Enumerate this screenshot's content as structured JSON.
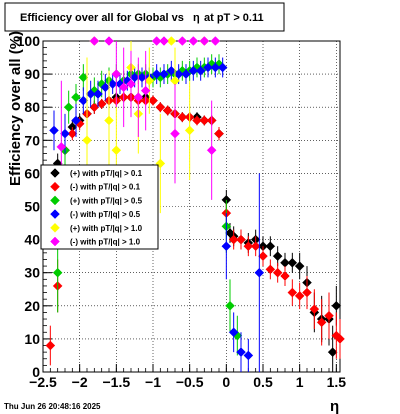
{
  "chart_data": {
    "type": "scatter",
    "title_prefix": "Efficiency over all for Global vs",
    "title_eta": "η",
    "title_suffix": "at pT > 0.11",
    "xlabel": "η",
    "ylabel": "Efficiency over all (%)",
    "xlim": [
      -2.5,
      1.55
    ],
    "ylim": [
      0,
      100
    ],
    "x_ticks": [
      {
        "v": -2.5,
        "label": "−2.5"
      },
      {
        "v": -2,
        "label": "−2"
      },
      {
        "v": -1.5,
        "label": "−1.5"
      },
      {
        "v": -1,
        "label": "−1"
      },
      {
        "v": -0.5,
        "label": "−0.5"
      },
      {
        "v": 0,
        "label": "0"
      },
      {
        "v": 0.5,
        "label": "0.5"
      },
      {
        "v": 1,
        "label": "1"
      },
      {
        "v": 1.5,
        "label": "1.5"
      }
    ],
    "y_ticks": [
      {
        "v": 0,
        "label": "0"
      },
      {
        "v": 10,
        "label": "10"
      },
      {
        "v": 20,
        "label": "20"
      },
      {
        "v": 30,
        "label": "30"
      },
      {
        "v": 40,
        "label": "40"
      },
      {
        "v": 50,
        "label": "50"
      },
      {
        "v": 60,
        "label": "60"
      },
      {
        "v": 70,
        "label": "70"
      },
      {
        "v": 80,
        "label": "80"
      },
      {
        "v": 90,
        "label": "90"
      },
      {
        "v": 100,
        "label": "100"
      }
    ],
    "grid": true,
    "legend_position": "middle-left",
    "timestamp": "Thu Jun 26 20:48:16 2025",
    "series": [
      {
        "name": "(+) with pT/|q| > 0.1",
        "color": "#000000",
        "points": [
          {
            "x": -2.3,
            "y": 63,
            "e": 3
          },
          {
            "x": -2.2,
            "y": 67,
            "e": 3
          },
          {
            "x": -2.1,
            "y": 74,
            "e": 2
          },
          {
            "x": -2.0,
            "y": 76,
            "e": 2
          },
          {
            "x": -1.9,
            "y": 78,
            "e": 2
          },
          {
            "x": -1.8,
            "y": 80,
            "e": 2
          },
          {
            "x": -1.7,
            "y": 81,
            "e": 1.5
          },
          {
            "x": -1.6,
            "y": 82,
            "e": 1.5
          },
          {
            "x": -1.5,
            "y": 83,
            "e": 1.5
          },
          {
            "x": -1.4,
            "y": 83,
            "e": 1.5
          },
          {
            "x": -1.3,
            "y": 83,
            "e": 1.5
          },
          {
            "x": -1.2,
            "y": 83,
            "e": 1.5
          },
          {
            "x": -1.1,
            "y": 83,
            "e": 1.5
          },
          {
            "x": -1.0,
            "y": 82,
            "e": 1.5
          },
          {
            "x": -0.9,
            "y": 80,
            "e": 1.5
          },
          {
            "x": -0.8,
            "y": 79,
            "e": 1.5
          },
          {
            "x": -0.7,
            "y": 78,
            "e": 1.5
          },
          {
            "x": -0.6,
            "y": 77,
            "e": 1.5
          },
          {
            "x": -0.5,
            "y": 77,
            "e": 1.5
          },
          {
            "x": -0.4,
            "y": 77,
            "e": 1.5
          },
          {
            "x": -0.3,
            "y": 76,
            "e": 1.5
          },
          {
            "x": -0.2,
            "y": 76,
            "e": 1.5
          },
          {
            "x": -0.1,
            "y": 72,
            "e": 2
          },
          {
            "x": 0.0,
            "y": 52,
            "e": 3
          },
          {
            "x": 0.05,
            "y": 42,
            "e": 3
          },
          {
            "x": 0.1,
            "y": 41,
            "e": 3
          },
          {
            "x": 0.2,
            "y": 40,
            "e": 3
          },
          {
            "x": 0.3,
            "y": 39,
            "e": 3
          },
          {
            "x": 0.4,
            "y": 40,
            "e": 3
          },
          {
            "x": 0.5,
            "y": 38,
            "e": 3
          },
          {
            "x": 0.6,
            "y": 38,
            "e": 3
          },
          {
            "x": 0.7,
            "y": 35,
            "e": 3
          },
          {
            "x": 0.8,
            "y": 33,
            "e": 3
          },
          {
            "x": 0.9,
            "y": 33,
            "e": 3
          },
          {
            "x": 1.0,
            "y": 32,
            "e": 4
          },
          {
            "x": 1.1,
            "y": 27,
            "e": 5
          },
          {
            "x": 1.2,
            "y": 18,
            "e": 6
          },
          {
            "x": 1.3,
            "y": 16,
            "e": 7
          },
          {
            "x": 1.4,
            "y": 16,
            "e": 8
          },
          {
            "x": 1.45,
            "y": 6,
            "e": 8
          },
          {
            "x": 1.5,
            "y": 20,
            "e": 6
          }
        ]
      },
      {
        "name": "(-) with pT/|q| > 0.1",
        "color": "#ff0000",
        "points": [
          {
            "x": -2.4,
            "y": 8,
            "e": 6
          },
          {
            "x": -2.3,
            "y": 26,
            "e": 8
          },
          {
            "x": -2.2,
            "y": 67,
            "e": 3
          },
          {
            "x": -2.1,
            "y": 72,
            "e": 2
          },
          {
            "x": -2.0,
            "y": 75,
            "e": 2
          },
          {
            "x": -1.9,
            "y": 78,
            "e": 2
          },
          {
            "x": -1.8,
            "y": 80,
            "e": 2
          },
          {
            "x": -1.7,
            "y": 81,
            "e": 1.5
          },
          {
            "x": -1.6,
            "y": 82,
            "e": 1.5
          },
          {
            "x": -1.5,
            "y": 82,
            "e": 1.5
          },
          {
            "x": -1.4,
            "y": 83,
            "e": 1.5
          },
          {
            "x": -1.3,
            "y": 83,
            "e": 1.5
          },
          {
            "x": -1.2,
            "y": 82,
            "e": 1.5
          },
          {
            "x": -1.1,
            "y": 82,
            "e": 1.5
          },
          {
            "x": -1.0,
            "y": 82,
            "e": 1.5
          },
          {
            "x": -0.9,
            "y": 80,
            "e": 1.5
          },
          {
            "x": -0.8,
            "y": 79,
            "e": 1.5
          },
          {
            "x": -0.7,
            "y": 78,
            "e": 1.5
          },
          {
            "x": -0.6,
            "y": 77,
            "e": 1.5
          },
          {
            "x": -0.5,
            "y": 77,
            "e": 1.5
          },
          {
            "x": -0.4,
            "y": 76,
            "e": 1.5
          },
          {
            "x": -0.3,
            "y": 76,
            "e": 1.5
          },
          {
            "x": -0.2,
            "y": 76,
            "e": 1.5
          },
          {
            "x": -0.1,
            "y": 72,
            "e": 2
          },
          {
            "x": 0.0,
            "y": 48,
            "e": 3
          },
          {
            "x": 0.1,
            "y": 40,
            "e": 3
          },
          {
            "x": 0.2,
            "y": 40,
            "e": 3
          },
          {
            "x": 0.3,
            "y": 38,
            "e": 3
          },
          {
            "x": 0.4,
            "y": 38,
            "e": 3
          },
          {
            "x": 0.5,
            "y": 35,
            "e": 3
          },
          {
            "x": 0.6,
            "y": 31,
            "e": 3
          },
          {
            "x": 0.7,
            "y": 30,
            "e": 3
          },
          {
            "x": 0.8,
            "y": 29,
            "e": 3
          },
          {
            "x": 0.9,
            "y": 24,
            "e": 4
          },
          {
            "x": 1.0,
            "y": 23,
            "e": 4
          },
          {
            "x": 1.1,
            "y": 24,
            "e": 5
          },
          {
            "x": 1.2,
            "y": 19,
            "e": 6
          },
          {
            "x": 1.3,
            "y": 15,
            "e": 7
          },
          {
            "x": 1.4,
            "y": 17,
            "e": 7
          },
          {
            "x": 1.5,
            "y": 11,
            "e": 7
          },
          {
            "x": 1.55,
            "y": 10,
            "e": 6
          }
        ]
      },
      {
        "name": "(+) with pT/|q| > 0.5",
        "color": "#00cc00",
        "points": [
          {
            "x": -2.3,
            "y": 30,
            "e": 12
          },
          {
            "x": -2.2,
            "y": 67,
            "e": 6
          },
          {
            "x": -2.15,
            "y": 80,
            "e": 5
          },
          {
            "x": -2.05,
            "y": 83,
            "e": 4
          },
          {
            "x": -1.95,
            "y": 89,
            "e": 4
          },
          {
            "x": -1.8,
            "y": 85,
            "e": 4
          },
          {
            "x": -1.7,
            "y": 87,
            "e": 4
          },
          {
            "x": -1.6,
            "y": 88,
            "e": 4
          },
          {
            "x": -1.5,
            "y": 90,
            "e": 3
          },
          {
            "x": -1.4,
            "y": 88,
            "e": 3
          },
          {
            "x": -1.3,
            "y": 90,
            "e": 3
          },
          {
            "x": -1.2,
            "y": 90,
            "e": 3
          },
          {
            "x": -1.1,
            "y": 90,
            "e": 3
          },
          {
            "x": -1.0,
            "y": 89,
            "e": 3
          },
          {
            "x": -0.9,
            "y": 89,
            "e": 3
          },
          {
            "x": -0.8,
            "y": 90,
            "e": 3
          },
          {
            "x": -0.7,
            "y": 90,
            "e": 3
          },
          {
            "x": -0.6,
            "y": 91,
            "e": 3
          },
          {
            "x": -0.5,
            "y": 91,
            "e": 3
          },
          {
            "x": -0.4,
            "y": 92,
            "e": 3
          },
          {
            "x": -0.3,
            "y": 92,
            "e": 3
          },
          {
            "x": -0.2,
            "y": 93,
            "e": 3
          },
          {
            "x": -0.1,
            "y": 93,
            "e": 3
          },
          {
            "x": 0.0,
            "y": 44,
            "e": 8
          },
          {
            "x": 0.05,
            "y": 20,
            "e": 8
          },
          {
            "x": 0.15,
            "y": 11,
            "e": 6
          }
        ]
      },
      {
        "name": "(-) with pT/|q| > 0.5",
        "color": "#0000ff",
        "points": [
          {
            "x": -2.35,
            "y": 73,
            "e": 6
          },
          {
            "x": -2.2,
            "y": 72,
            "e": 6
          },
          {
            "x": -2.05,
            "y": 76,
            "e": 5
          },
          {
            "x": -1.95,
            "y": 82,
            "e": 4
          },
          {
            "x": -1.85,
            "y": 84,
            "e": 4
          },
          {
            "x": -1.75,
            "y": 84,
            "e": 4
          },
          {
            "x": -1.65,
            "y": 86,
            "e": 4
          },
          {
            "x": -1.55,
            "y": 87,
            "e": 3
          },
          {
            "x": -1.45,
            "y": 87,
            "e": 3
          },
          {
            "x": -1.35,
            "y": 88,
            "e": 3
          },
          {
            "x": -1.25,
            "y": 89,
            "e": 3
          },
          {
            "x": -1.15,
            "y": 89,
            "e": 3
          },
          {
            "x": -1.05,
            "y": 89,
            "e": 3
          },
          {
            "x": -0.95,
            "y": 90,
            "e": 3
          },
          {
            "x": -0.85,
            "y": 90,
            "e": 3
          },
          {
            "x": -0.75,
            "y": 91,
            "e": 3
          },
          {
            "x": -0.65,
            "y": 90,
            "e": 3
          },
          {
            "x": -0.55,
            "y": 90,
            "e": 3
          },
          {
            "x": -0.45,
            "y": 91,
            "e": 3
          },
          {
            "x": -0.35,
            "y": 91,
            "e": 3
          },
          {
            "x": -0.25,
            "y": 92,
            "e": 3
          },
          {
            "x": -0.15,
            "y": 92,
            "e": 3
          },
          {
            "x": -0.05,
            "y": 92,
            "e": 3
          },
          {
            "x": 0.0,
            "y": 38,
            "e": 10
          },
          {
            "x": 0.1,
            "y": 12,
            "e": 6
          },
          {
            "x": 0.2,
            "y": 6,
            "e": 6
          },
          {
            "x": 0.3,
            "y": 5,
            "e": 5
          },
          {
            "x": 0.45,
            "y": 30,
            "e": 30
          }
        ]
      },
      {
        "name": "(+) with pT/|q| > 1.0",
        "color": "#ffff00",
        "points": [
          {
            "x": -1.9,
            "y": 70,
            "e": 25
          },
          {
            "x": -1.8,
            "y": 100,
            "e": 0
          },
          {
            "x": -1.6,
            "y": 76,
            "e": 15
          },
          {
            "x": -1.5,
            "y": 67,
            "e": 20
          },
          {
            "x": -1.3,
            "y": 92,
            "e": 8
          },
          {
            "x": -1.2,
            "y": 78,
            "e": 12
          },
          {
            "x": -1.05,
            "y": 88,
            "e": 10
          },
          {
            "x": -0.9,
            "y": 63,
            "e": 15
          },
          {
            "x": -0.75,
            "y": 100,
            "e": 0
          },
          {
            "x": -0.7,
            "y": 88,
            "e": 10
          },
          {
            "x": -0.5,
            "y": 73,
            "e": 15
          },
          {
            "x": -0.3,
            "y": 100,
            "e": 0
          }
        ]
      },
      {
        "name": "(-) with pT/|q| > 1.0",
        "color": "#ff00ff",
        "points": [
          {
            "x": -2.25,
            "y": 68,
            "e": 20
          },
          {
            "x": -1.8,
            "y": 100,
            "e": 0
          },
          {
            "x": -1.6,
            "y": 100,
            "e": 0
          },
          {
            "x": -1.5,
            "y": 90,
            "e": 10
          },
          {
            "x": -1.4,
            "y": 86,
            "e": 12
          },
          {
            "x": -1.3,
            "y": 87,
            "e": 10
          },
          {
            "x": -1.2,
            "y": 83,
            "e": 12
          },
          {
            "x": -1.1,
            "y": 85,
            "e": 12
          },
          {
            "x": -0.95,
            "y": 100,
            "e": 0
          },
          {
            "x": -0.85,
            "y": 100,
            "e": 0
          },
          {
            "x": -0.7,
            "y": 72,
            "e": 15
          },
          {
            "x": -0.6,
            "y": 100,
            "e": 0
          },
          {
            "x": -0.45,
            "y": 100,
            "e": 0
          },
          {
            "x": -0.3,
            "y": 100,
            "e": 0
          },
          {
            "x": -0.2,
            "y": 67,
            "e": 15
          },
          {
            "x": -0.15,
            "y": 100,
            "e": 0
          }
        ]
      }
    ]
  }
}
